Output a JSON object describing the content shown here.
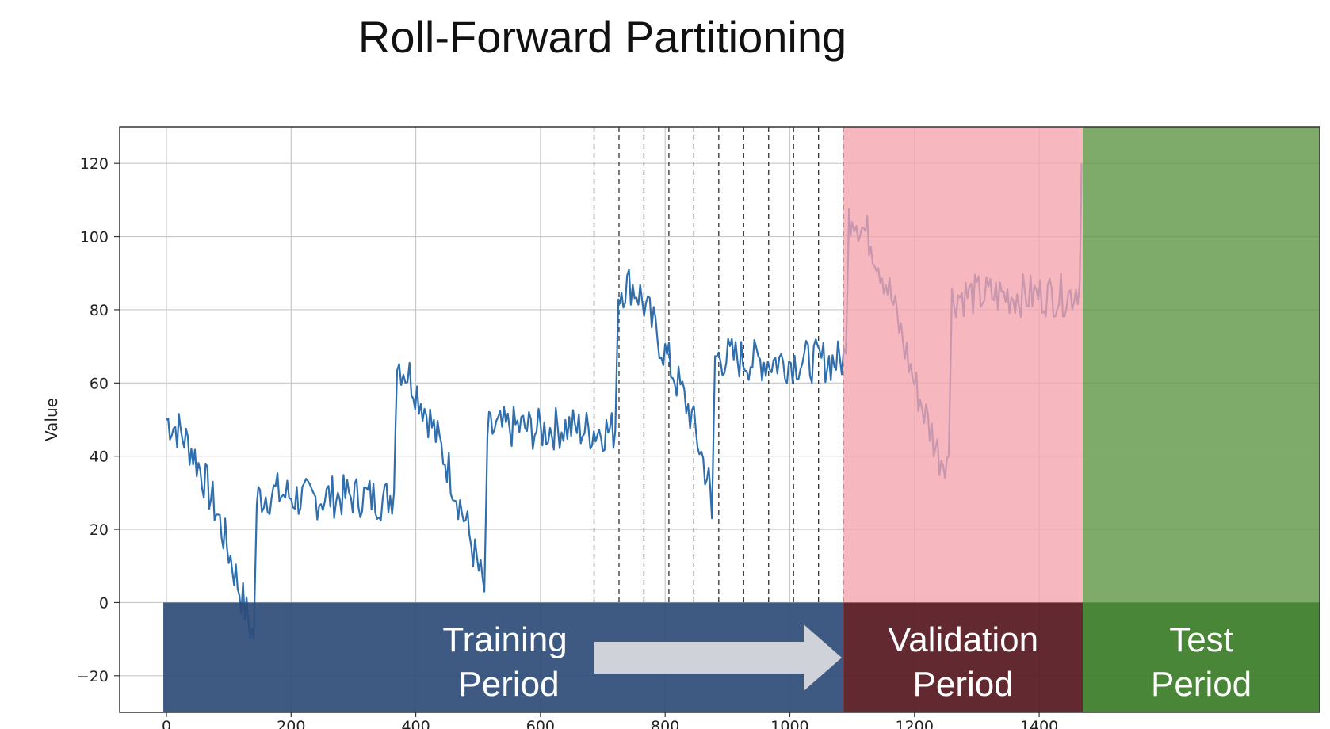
{
  "slide": {
    "title": "Roll-Forward Partitioning"
  },
  "colors": {
    "series": "#2f6fad",
    "validation_band": "#f3a3ad",
    "test_band": "#5e9545",
    "training_box": "#2e4c78",
    "validation_box": "#5a1e25",
    "test_box": "#3f7f2c",
    "arrow": "#cfd2d8",
    "grid": "#c8c8c8"
  },
  "chart_data": {
    "type": "line",
    "title": "",
    "xlabel": "",
    "ylabel": "Value",
    "xlim": [
      -75,
      1850
    ],
    "ylim": [
      -30,
      130
    ],
    "grid": true,
    "x_ticks": [
      0,
      200,
      400,
      600,
      800,
      1000,
      1200,
      1400
    ],
    "y_ticks": [
      -20,
      0,
      20,
      40,
      60,
      80,
      100,
      120
    ],
    "x_tick_labels": [
      "0",
      "200",
      "400",
      "600",
      "800",
      "1000",
      "1200",
      "1400"
    ],
    "y_tick_labels": [
      "−20",
      "0",
      "20",
      "40",
      "60",
      "80",
      "100",
      "120"
    ],
    "roll_forward_markers": [
      686,
      726,
      766,
      806,
      846,
      886,
      926,
      966,
      1006,
      1046,
      1086
    ],
    "validation_range": [
      1086,
      1470
    ],
    "test_range": [
      1470,
      1850
    ],
    "series": [
      {
        "x": [
          0,
          20,
          40,
          60,
          80,
          100,
          120,
          140,
          145,
          150,
          175,
          200,
          230,
          260,
          290,
          320,
          350,
          365,
          370,
          380,
          390,
          420,
          450,
          480,
          510,
          515,
          520,
          560,
          600,
          640,
          680,
          700,
          720,
          725,
          730,
          745,
          760,
          800,
          840,
          870,
          875,
          880,
          910,
          940,
          980,
          1020,
          1060,
          1080,
          1090,
          1095,
          1100,
          1110,
          1130,
          1160,
          1200,
          1240,
          1255,
          1260,
          1270,
          1300,
          1340,
          1380,
          1420,
          1450,
          1465,
          1468
        ],
        "values": [
          50,
          47,
          42,
          34,
          25,
          14,
          2,
          -10,
          28,
          29,
          30,
          29,
          28,
          29,
          29,
          29,
          28,
          30,
          66,
          64,
          62,
          51,
          38,
          22,
          3,
          46,
          47,
          48,
          47,
          48,
          47,
          47,
          47,
          84,
          86,
          87,
          84,
          68,
          52,
          33,
          23,
          67,
          67,
          66,
          66,
          66,
          66,
          66,
          68,
          105,
          107,
          104,
          99,
          85,
          60,
          40,
          40,
          83,
          84,
          84,
          84,
          84,
          84,
          84,
          87,
          120
        ]
      }
    ],
    "annotations": [
      {
        "label_line1": "Training",
        "label_line2": "Period"
      },
      {
        "label_line1": "Validation",
        "label_line2": "Period"
      },
      {
        "label_line1": "Test",
        "label_line2": "Period"
      }
    ]
  }
}
